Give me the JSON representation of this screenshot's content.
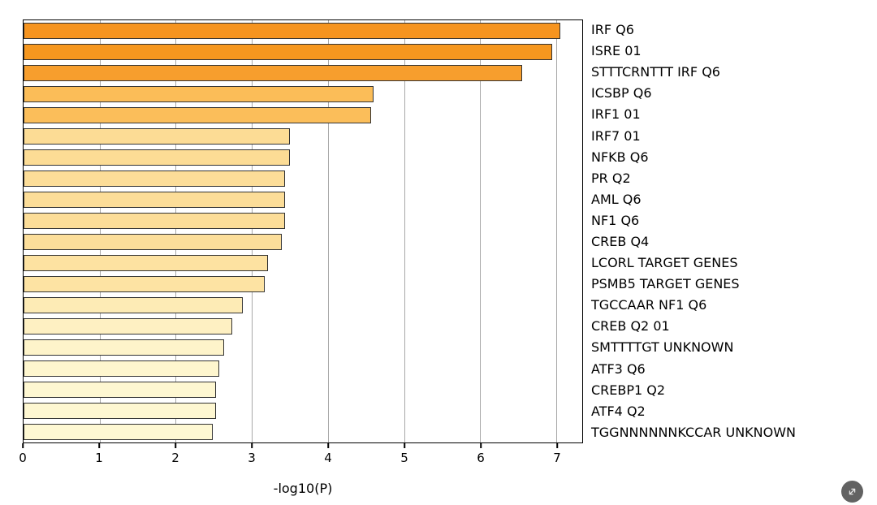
{
  "chart_data": {
    "type": "bar",
    "orientation": "horizontal",
    "title": "",
    "xlabel": "-log10(P)",
    "ylabel": "",
    "xlim": [
      0,
      7.34
    ],
    "xticks": [
      0,
      1,
      2,
      3,
      4,
      5,
      6,
      7
    ],
    "grid": true,
    "legend": "none",
    "categories": [
      "IRF Q6",
      "ISRE 01",
      "STTTCRNTTT IRF Q6",
      "ICSBP Q6",
      "IRF1 01",
      "IRF7 01",
      "NFKB Q6",
      "PR Q2",
      "AML Q6",
      "NF1 Q6",
      "CREB Q4",
      "LCORL TARGET GENES",
      "PSMB5 TARGET GENES",
      "TGCCAAR NF1 Q6",
      "CREB Q2 01",
      "SMTTTTGT UNKNOWN",
      "ATF3 Q6",
      "CREBP1 Q2",
      "ATF4 Q2",
      "TGGNNNNNNKCCAR UNKNOWN"
    ],
    "values": [
      7.05,
      6.94,
      6.55,
      4.6,
      4.57,
      3.5,
      3.5,
      3.43,
      3.43,
      3.43,
      3.39,
      3.21,
      3.17,
      2.88,
      2.74,
      2.63,
      2.57,
      2.53,
      2.53,
      2.49
    ],
    "bar_colors": [
      "#F6941F",
      "#F6971F",
      "#F79E2D",
      "#FBBD58",
      "#FBBE5A",
      "#FCDC95",
      "#FCDC95",
      "#FCDD98",
      "#FCDD98",
      "#FCDD98",
      "#FCDE9A",
      "#FDE2A1",
      "#FDE3A3",
      "#FDEBB5",
      "#FEF0C2",
      "#FEF4CA",
      "#FEF6CE",
      "#FEF7D1",
      "#FEF7D1",
      "#FEF8D3"
    ],
    "bar_border_color": "#333333",
    "gridline_color": "#a8a8a8"
  },
  "icons": {
    "zoom": "expand-diagonal-arrows"
  }
}
